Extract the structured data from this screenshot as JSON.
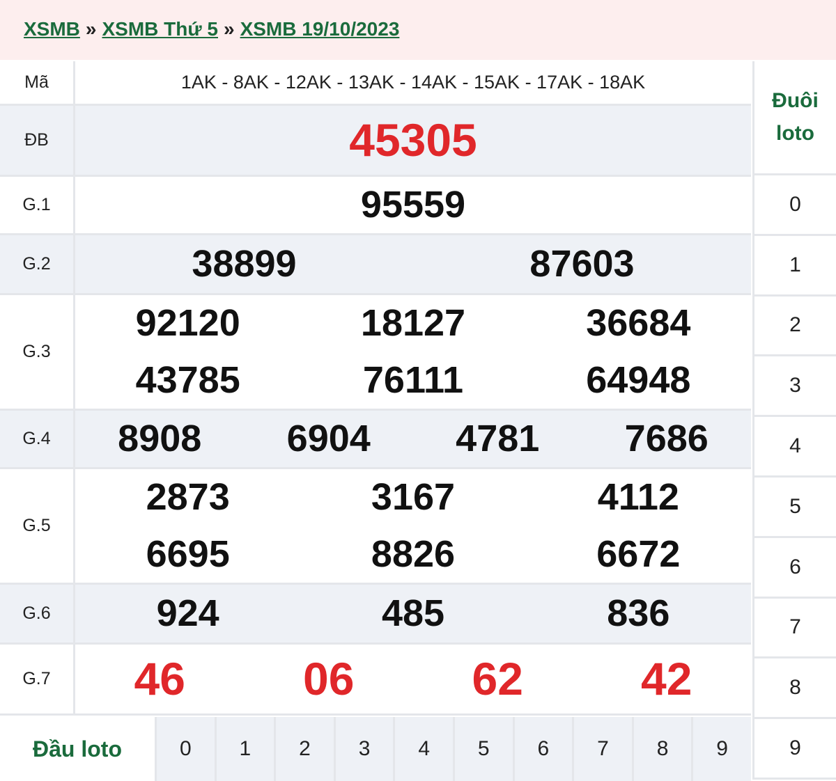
{
  "breadcrumb": [
    "XSMB",
    "XSMB Thứ 5",
    "XSMB 19/10/2023"
  ],
  "breadcrumb_sep": "»",
  "ma": {
    "label": "Mã",
    "value": "1AK - 8AK - 12AK - 13AK - 14AK - 15AK - 17AK - 18AK"
  },
  "prizes": [
    {
      "label": "ĐB",
      "numbers": [
        "45305"
      ]
    },
    {
      "label": "G.1",
      "numbers": [
        "95559"
      ]
    },
    {
      "label": "G.2",
      "numbers": [
        "38899",
        "87603"
      ]
    },
    {
      "label": "G.3",
      "numbers": [
        "92120",
        "18127",
        "36684",
        "43785",
        "76111",
        "64948"
      ]
    },
    {
      "label": "G.4",
      "numbers": [
        "8908",
        "6904",
        "4781",
        "7686"
      ]
    },
    {
      "label": "G.5",
      "numbers": [
        "2873",
        "3167",
        "4112",
        "6695",
        "8826",
        "6672"
      ]
    },
    {
      "label": "G.6",
      "numbers": [
        "924",
        "485",
        "836"
      ]
    },
    {
      "label": "G.7",
      "numbers": [
        "46",
        "06",
        "62",
        "42"
      ]
    }
  ],
  "dau_loto": {
    "label": "Đầu loto",
    "digits": [
      "0",
      "1",
      "2",
      "3",
      "4",
      "5",
      "6",
      "7",
      "8",
      "9"
    ]
  },
  "duoi_loto": {
    "label_line1": "Đuôi",
    "label_line2": "loto",
    "digits": [
      "0",
      "1",
      "2",
      "3",
      "4",
      "5",
      "6",
      "7",
      "8",
      "9"
    ]
  },
  "colors": {
    "accent_green": "#1a6b3c",
    "highlight_red": "#e0272a",
    "alt_row": "#eef1f6",
    "header_bg": "#fdeeee"
  }
}
